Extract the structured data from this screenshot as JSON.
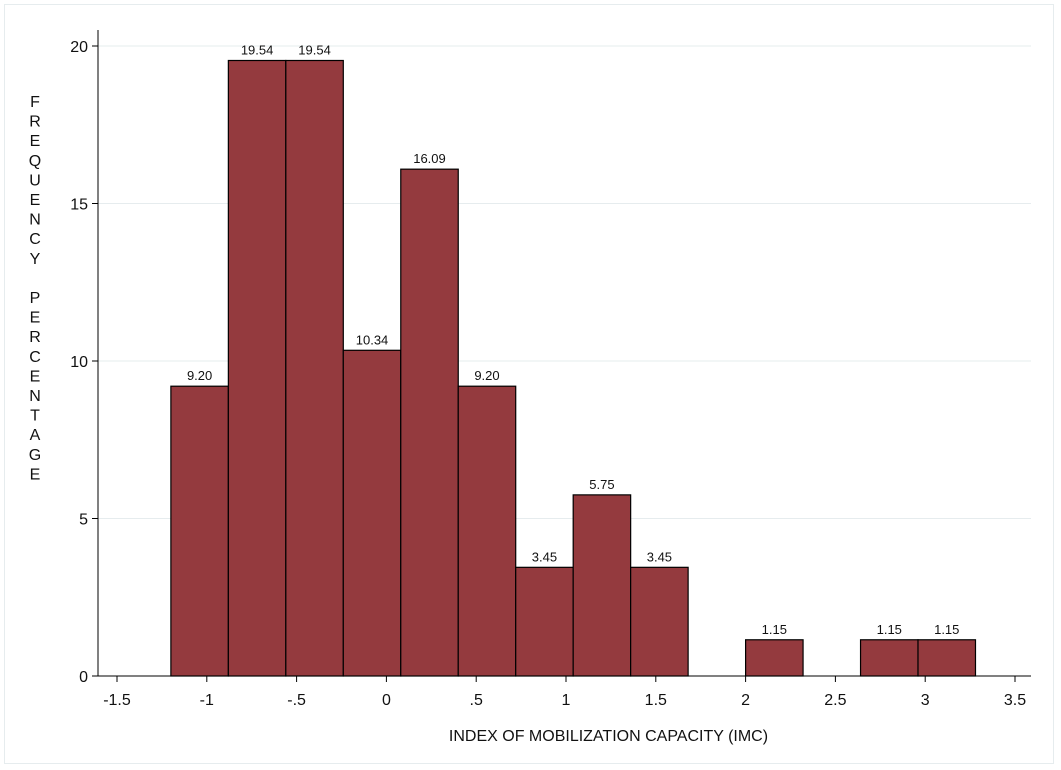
{
  "chart_data": {
    "type": "bar",
    "xlabel": "INDEX OF MOBILIZATION CAPACITY (IMC)",
    "ylabel": "FREQUENCY PERCENTAGE",
    "ylabel_lines": [
      "FREQUENCY",
      "PERCENTAGE"
    ],
    "xlim": [
      -1.5,
      3.5
    ],
    "ylim": [
      0,
      20
    ],
    "x_ticks": [
      -1.5,
      -1,
      -0.5,
      0,
      0.5,
      1,
      1.5,
      2,
      2.5,
      3,
      3.5
    ],
    "x_tick_labels": [
      "-1.5",
      "-1",
      "-.5",
      "0",
      ".5",
      "1",
      "1.5",
      "2",
      "2.5",
      "3",
      "3.5"
    ],
    "y_ticks": [
      0,
      5,
      10,
      15,
      20
    ],
    "y_tick_labels": [
      "0",
      "5",
      "10",
      "15",
      "20"
    ],
    "grid": true,
    "bin_width": 0.32,
    "bins": [
      {
        "x0": -1.2,
        "x1": -0.88,
        "value": 9.2,
        "label": "9.20"
      },
      {
        "x0": -0.88,
        "x1": -0.56,
        "value": 19.54,
        "label": "19.54"
      },
      {
        "x0": -0.56,
        "x1": -0.24,
        "value": 19.54,
        "label": "19.54"
      },
      {
        "x0": -0.24,
        "x1": 0.08,
        "value": 10.34,
        "label": "10.34"
      },
      {
        "x0": 0.08,
        "x1": 0.4,
        "value": 16.09,
        "label": "16.09"
      },
      {
        "x0": 0.4,
        "x1": 0.72,
        "value": 9.2,
        "label": "9.20"
      },
      {
        "x0": 0.72,
        "x1": 1.04,
        "value": 3.45,
        "label": "3.45"
      },
      {
        "x0": 1.04,
        "x1": 1.36,
        "value": 5.75,
        "label": "5.75"
      },
      {
        "x0": 1.36,
        "x1": 1.68,
        "value": 3.45,
        "label": "3.45"
      },
      {
        "x0": 2.0,
        "x1": 2.32,
        "value": 1.15,
        "label": "1.15"
      },
      {
        "x0": 2.64,
        "x1": 2.96,
        "value": 1.15,
        "label": "1.15"
      },
      {
        "x0": 2.96,
        "x1": 3.28,
        "value": 1.15,
        "label": "1.15"
      }
    ],
    "colors": {
      "bar_fill": "#943a3e",
      "bar_stroke": "#000000",
      "grid": "#e6ecee",
      "axis": "#000000"
    }
  }
}
